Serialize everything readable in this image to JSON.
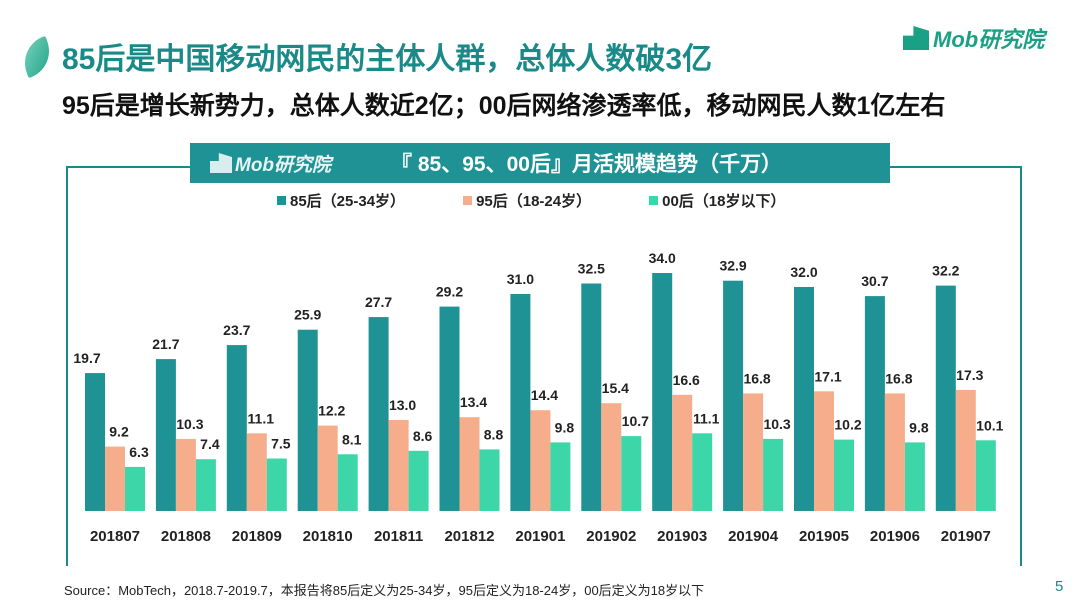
{
  "header": {
    "title": "85后是中国移动网民的主体人群，总体人数破3亿",
    "subtitle": "95后是增长新势力，总体人数近2亿；00后网络渗透率低，移动网民人数1亿左右",
    "logo": "Mob研究院"
  },
  "chart_data": {
    "type": "bar",
    "title": "『 85、95、00后』月活规模趋势（千万）",
    "banner_logo": "Mob研究院",
    "categories": [
      "201807",
      "201808",
      "201809",
      "201810",
      "201811",
      "201812",
      "201901",
      "201902",
      "201903",
      "201904",
      "201905",
      "201906",
      "201907"
    ],
    "series": [
      {
        "name": "85后（25-34岁）",
        "color": "#1e9294",
        "values": [
          19.7,
          21.7,
          23.7,
          25.9,
          27.7,
          29.2,
          31.0,
          32.5,
          34.0,
          32.9,
          32.0,
          30.7,
          32.2
        ]
      },
      {
        "name": "95后（18-24岁）",
        "color": "#f6ad8c",
        "values": [
          9.2,
          10.3,
          11.1,
          12.2,
          13.0,
          13.4,
          14.4,
          15.4,
          16.6,
          16.8,
          17.1,
          16.8,
          17.3
        ]
      },
      {
        "name": "00后（18岁以下）",
        "color": "#3dd6a8",
        "values": [
          6.3,
          7.4,
          7.5,
          8.1,
          8.6,
          8.8,
          9.8,
          10.7,
          11.1,
          10.3,
          10.2,
          9.8,
          10.1
        ]
      }
    ],
    "legend": "top",
    "grid": false,
    "data_labels": true
  },
  "footer": {
    "source": "Source：MobTech，2018.7-2019.7，本报告将85后定义为25-34岁，95后定义为18-24岁，00后定义为18岁以下",
    "page": "5"
  }
}
